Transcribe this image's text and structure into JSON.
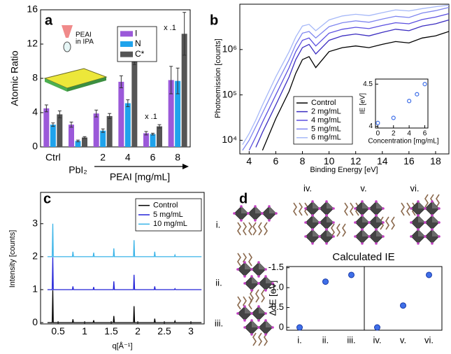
{
  "chart_data": [
    {
      "type": "bar",
      "panel_label": "a",
      "y_label": "Atomic Ratio",
      "x_label": "PEAI [mg/mL]",
      "categories": [
        "Ctrl",
        "PbI₂",
        "2",
        "4",
        "6",
        "8"
      ],
      "series": [
        {
          "name": "I",
          "color": "#9b59d9",
          "values": [
            4.5,
            2.6,
            3.9,
            7.6,
            1.6,
            7.8
          ],
          "errors": [
            0.4,
            0.3,
            0.4,
            0.7,
            0.2,
            1.6
          ]
        },
        {
          "name": "N",
          "color": "#1fa3ec",
          "values": [
            2.6,
            0.7,
            1.9,
            5.1,
            1.5,
            7.7
          ],
          "errors": [
            0.2,
            0.1,
            0.2,
            0.4,
            0.1,
            1.5
          ]
        },
        {
          "name": "C*",
          "color": "#555555",
          "values": [
            3.8,
            1.1,
            3.6,
            10.4,
            2.4,
            13.2
          ],
          "errors": [
            0.4,
            0.1,
            0.3,
            0.8,
            0.2,
            2.5
          ]
        }
      ],
      "ylim": [
        0,
        16
      ],
      "yticks": [
        0,
        4,
        8,
        12,
        16
      ],
      "legend": "upper-right",
      "annotations": [
        "x .1",
        "x .1"
      ],
      "inset_text": [
        "PEAI",
        "in IPA"
      ]
    },
    {
      "type": "line",
      "panel_label": "b",
      "x_label": "Binding Energy [eV]",
      "y_label": "Photoemission [counts]",
      "log_y": true,
      "x": [
        3.5,
        4,
        4.5,
        5,
        6,
        7,
        7.5,
        8,
        8.5,
        9,
        10,
        11,
        12,
        13,
        14,
        15,
        16,
        17,
        18,
        19
      ],
      "series": [
        {
          "name": "Control",
          "color": "#000000",
          "values": [
            null,
            null,
            null,
            6000,
            30000,
            120000,
            300000,
            600000,
            700000,
            400000,
            900000,
            1100000,
            1200000,
            1100000,
            1300000,
            1500000,
            1400000,
            1800000,
            2000000,
            2500000
          ]
        },
        {
          "name": "2 mg/mL",
          "color": "#3a2cc0",
          "values": [
            null,
            null,
            7000,
            15000,
            60000,
            250000,
            600000,
            1100000,
            1300000,
            800000,
            1600000,
            2000000,
            2200000,
            2000000,
            2400000,
            2800000,
            2600000,
            3300000,
            3700000,
            4500000
          ]
        },
        {
          "name": "4 mg/mL",
          "color": "#5a4ee0",
          "values": [
            null,
            6000,
            12000,
            25000,
            100000,
            400000,
            900000,
            1600000,
            1800000,
            1200000,
            2300000,
            2800000,
            3100000,
            2900000,
            3400000,
            3900000,
            3700000,
            4600000,
            5200000,
            6200000
          ]
        },
        {
          "name": "5 mg/mL",
          "color": "#7f86f0",
          "values": [
            6000,
            10000,
            20000,
            40000,
            160000,
            600000,
            1300000,
            2300000,
            2500000,
            1800000,
            3200000,
            3900000,
            4300000,
            4000000,
            4700000,
            5400000,
            5100000,
            6400000,
            7200000,
            8500000
          ]
        },
        {
          "name": "6 mg/mL",
          "color": "#a6b8f8",
          "values": [
            8000,
            14000,
            28000,
            60000,
            250000,
            900000,
            1900000,
            3300000,
            3600000,
            2600000,
            4500000,
            5500000,
            6000000,
            5600000,
            6500000,
            7500000,
            7100000,
            8000000,
            8800000,
            9500000
          ]
        }
      ],
      "xlim": [
        3.3,
        19
      ],
      "xticks": [
        4,
        6,
        8,
        10,
        12,
        14,
        16,
        18
      ],
      "ylim": [
        5000,
        10000000
      ],
      "yticks": [
        {
          "value": 10000,
          "label": "10⁴"
        },
        {
          "value": 100000,
          "label": "10⁵"
        },
        {
          "value": 1000000,
          "label": "10⁶"
        }
      ],
      "legend": "lower-left",
      "inset": {
        "type": "scatter",
        "x_label": "Concentration [mg/mL]",
        "y_label": "IE [eV]",
        "color": "#3f6fe8",
        "x": [
          0,
          2,
          4,
          5,
          6
        ],
        "values": [
          4.04,
          4.1,
          4.3,
          4.38,
          4.5
        ],
        "xlim": [
          -0.3,
          6.4
        ],
        "xticks": [
          0,
          2,
          4,
          6
        ],
        "ylim": [
          3.98,
          4.56
        ],
        "yticks": [
          4,
          4.5
        ]
      }
    },
    {
      "type": "line",
      "panel_label": "c",
      "x_label": "q[Å⁻¹]",
      "y_label": "Intensity [counts]",
      "x": [
        0.3,
        0.39,
        0.4,
        0.41,
        0.77,
        0.78,
        0.79,
        1.16,
        1.17,
        1.18,
        1.54,
        1.55,
        1.56,
        1.92,
        1.93,
        1.94,
        2.31,
        2.32,
        2.33,
        2.69,
        2.7,
        2.71,
        3.2
      ],
      "series": [
        {
          "name": "Control",
          "color": "#000000",
          "values": [
            0,
            0,
            0.98,
            0,
            0,
            0.1,
            0,
            0,
            0.07,
            0,
            0,
            0.2,
            0,
            0,
            0.5,
            0,
            0,
            0.12,
            0,
            0,
            0.05,
            0,
            0
          ]
        },
        {
          "name": "5 mg/mL",
          "color": "#2323d8",
          "values": [
            1,
            1,
            1.98,
            1,
            1,
            1.1,
            1,
            1,
            1.08,
            1,
            1,
            1.25,
            1,
            1,
            1.45,
            1,
            1,
            1.1,
            1,
            1,
            1.03,
            1,
            1
          ]
        },
        {
          "name": "10 mg/mL",
          "color": "#3ab4e8",
          "values": [
            2,
            2,
            3,
            2,
            2,
            2.15,
            2,
            2,
            2.12,
            2,
            2,
            2.25,
            2,
            2,
            2.5,
            2,
            2,
            2.15,
            2,
            2,
            2.05,
            2,
            2
          ]
        }
      ],
      "xlim": [
        0.17,
        3.25
      ],
      "xticks": [
        0.5,
        1,
        1.5,
        2,
        2.5,
        3
      ],
      "ylim": [
        -0.04,
        3.95
      ],
      "yticks": [
        0,
        1,
        2,
        3
      ],
      "legend": "upper-right"
    },
    {
      "type": "scatter",
      "panel_label": "d",
      "title": "Calculated IE",
      "y_label": "Δ IE [eV]",
      "color": "#3f6fe8",
      "categories": [
        "i.",
        "ii.",
        "iii.",
        "iv.",
        "v.",
        "vi."
      ],
      "values": [
        0,
        -1.15,
        -1.32,
        0,
        -0.55,
        -1.32
      ],
      "ylim": [
        0.07,
        -1.53
      ],
      "yticks": [
        -1.5,
        {
          "value": -1,
          "label": "-1.0"
        },
        -0.5,
        0
      ],
      "structure_labels": [
        "i.",
        "ii.",
        "iii.",
        "iv.",
        "v.",
        "vi."
      ]
    }
  ]
}
